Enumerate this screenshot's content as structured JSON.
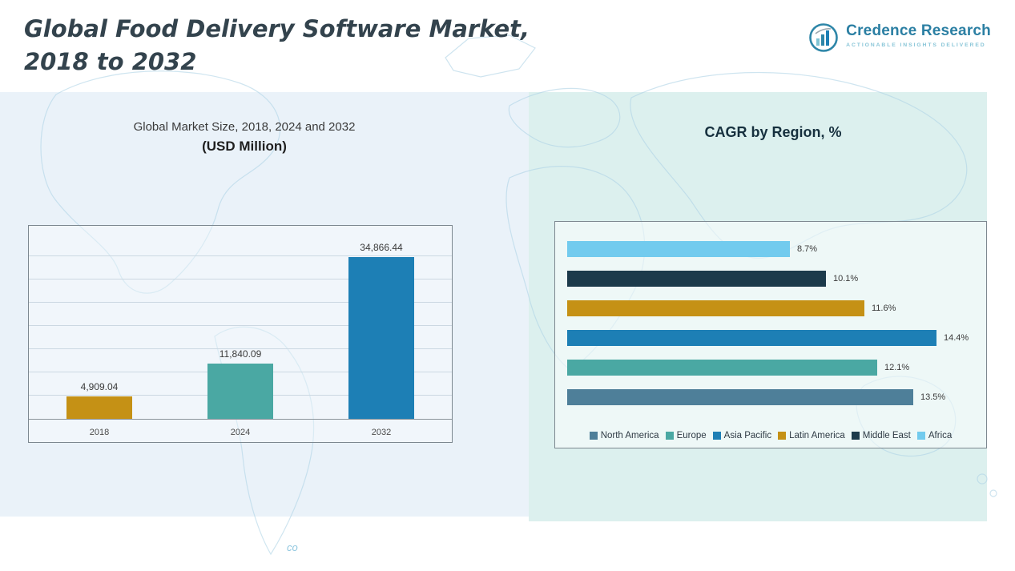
{
  "page": {
    "title_line1": "Global Food Delivery Software Market,",
    "title_line2": "2018 to 2032"
  },
  "logo": {
    "name": "Credence Research",
    "tagline": "Actionable Insights Delivered",
    "icon": "bar-chart-circle-icon",
    "brand_color": "#2B7FA3",
    "tagline_color": "#8AC6D8"
  },
  "chart_data": [
    {
      "type": "bar",
      "orientation": "vertical",
      "title": "Global Market Size, 2018, 2024 and 2032",
      "subtitle": "(USD Million)",
      "categories": [
        "2018",
        "2024",
        "2032"
      ],
      "values": [
        4909.04,
        11840.09,
        34866.44
      ],
      "value_labels": [
        "4,909.04",
        "11,840.09",
        "34,866.44"
      ],
      "bar_colors": [
        "#C59115",
        "#4AA8A3",
        "#1D7FB5"
      ],
      "xlabel": "",
      "ylabel": "USD Million",
      "ylim": [
        0,
        40000
      ],
      "grid_step": 5000,
      "grid": true,
      "legend_position": "none"
    },
    {
      "type": "bar",
      "orientation": "horizontal",
      "title": "CAGR by Region, %",
      "xlabel": "CAGR %",
      "xlim": [
        0,
        15
      ],
      "grid": false,
      "legend_position": "bottom",
      "series": [
        {
          "name": "Africa",
          "value": 8.7,
          "label": "8.7%",
          "color": "#72CBEE"
        },
        {
          "name": "Middle East",
          "value": 10.1,
          "label": "10.1%",
          "color": "#1C3A4B"
        },
        {
          "name": "Latin America",
          "value": 11.6,
          "label": "11.6%",
          "color": "#C59115"
        },
        {
          "name": "Asia Pacific",
          "value": 14.4,
          "label": "14.4%",
          "color": "#1D7FB5"
        },
        {
          "name": "Europe",
          "value": 12.1,
          "label": "12.1%",
          "color": "#4AA8A3"
        },
        {
          "name": "North America",
          "value": 13.5,
          "label": "13.5%",
          "color": "#4E7F99"
        }
      ],
      "legend": [
        {
          "label": "North America",
          "color": "#4E7F99"
        },
        {
          "label": "Europe",
          "color": "#4AA8A3"
        },
        {
          "label": "Asia Pacific",
          "color": "#1D7FB5"
        },
        {
          "label": "Latin America",
          "color": "#C59115"
        },
        {
          "label": "Middle East",
          "color": "#1C3A4B"
        },
        {
          "label": "Africa",
          "color": "#72CBEE"
        }
      ]
    }
  ],
  "map": {
    "annotation": "co"
  }
}
